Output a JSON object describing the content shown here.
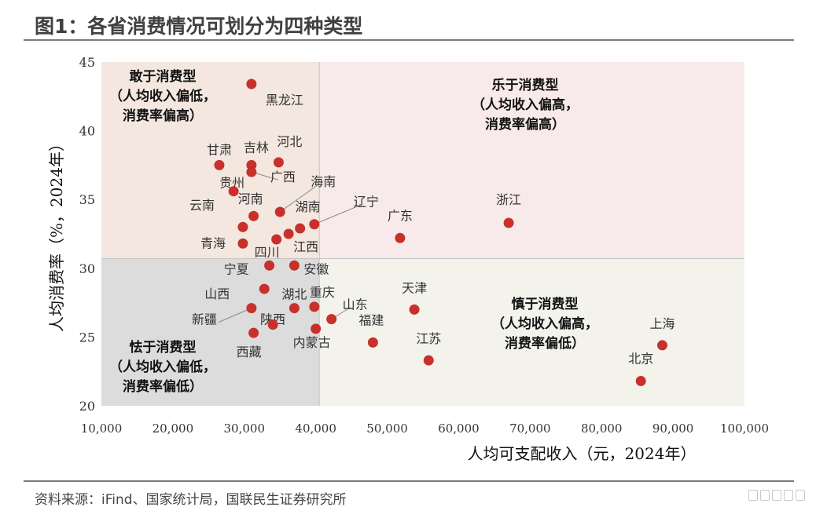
{
  "header": {
    "title": "图1：各省消费情况可划分为四种类型"
  },
  "footer": {
    "source": "资料来源：iFind、国家统计局，国联民生证券研究所"
  },
  "quadrants": {
    "top_left": {
      "lines": [
        "敢于消费型",
        "（人均收入偏低，",
        "消费率偏高）"
      ],
      "color": "#f3e7df"
    },
    "top_right": {
      "lines": [
        "乐于消费型",
        "（人均收入偏高，",
        "消费率偏高）"
      ],
      "color": "#f8eaea"
    },
    "bottom_left": {
      "lines": [
        "怯于消费型",
        "（人均收入偏低，",
        "消费率偏低）"
      ],
      "color": "#dcdcdc"
    },
    "bottom_right": {
      "lines": [
        "慎于消费型",
        "（人均收入偏高，",
        "消费率偏低）"
      ],
      "color": "#f3f3ec"
    }
  },
  "chart_data": {
    "type": "scatter",
    "xlabel": "人均可支配收入（元，2024年）",
    "ylabel": "人均消费率（%，2024年）",
    "xlim": [
      10000,
      100000
    ],
    "ylim": [
      20,
      45
    ],
    "x_ticks": [
      "10,000",
      "20,000",
      "30,000",
      "40,000",
      "50,000",
      "60,000",
      "70,000",
      "80,000",
      "90,000",
      "100,000"
    ],
    "y_ticks": [
      "20",
      "25",
      "30",
      "35",
      "40",
      "45"
    ],
    "dividers": {
      "x": 40500,
      "y": 30.7
    },
    "point_color": "#c8302c",
    "points": [
      {
        "name": "黑龙江",
        "x": 31000,
        "y": 43.4
      },
      {
        "name": "甘肃",
        "x": 26500,
        "y": 37.5
      },
      {
        "name": "吉林",
        "x": 31000,
        "y": 37.5
      },
      {
        "name": "河北",
        "x": 34800,
        "y": 37.7
      },
      {
        "name": "广西",
        "x": 31000,
        "y": 37.0
      },
      {
        "name": "贵州",
        "x": 28500,
        "y": 35.6
      },
      {
        "name": "海南",
        "x": 35000,
        "y": 34.1
      },
      {
        "name": "云南",
        "x": 29800,
        "y": 33.0
      },
      {
        "name": "河南",
        "x": 31300,
        "y": 33.8
      },
      {
        "name": "湖南",
        "x": 37800,
        "y": 32.9
      },
      {
        "name": "辽宁",
        "x": 39800,
        "y": 33.2
      },
      {
        "name": "广东",
        "x": 51800,
        "y": 32.2
      },
      {
        "name": "浙江",
        "x": 67000,
        "y": 33.3
      },
      {
        "name": "青海",
        "x": 29800,
        "y": 31.8
      },
      {
        "name": "四川",
        "x": 34500,
        "y": 32.1
      },
      {
        "name": "江西",
        "x": 36200,
        "y": 32.5
      },
      {
        "name": "宁夏",
        "x": 33500,
        "y": 30.2
      },
      {
        "name": "安徽",
        "x": 37000,
        "y": 30.2
      },
      {
        "name": "山西",
        "x": 32800,
        "y": 28.5
      },
      {
        "name": "湖北",
        "x": 37000,
        "y": 27.1
      },
      {
        "name": "重庆",
        "x": 39800,
        "y": 27.2
      },
      {
        "name": "山东",
        "x": 42200,
        "y": 26.3
      },
      {
        "name": "天津",
        "x": 53800,
        "y": 27.0
      },
      {
        "name": "新疆",
        "x": 31000,
        "y": 27.1
      },
      {
        "name": "陕西",
        "x": 34000,
        "y": 25.9
      },
      {
        "name": "西藏",
        "x": 31300,
        "y": 25.3
      },
      {
        "name": "内蒙古",
        "x": 40000,
        "y": 25.6
      },
      {
        "name": "福建",
        "x": 48000,
        "y": 24.6
      },
      {
        "name": "江苏",
        "x": 55800,
        "y": 23.3
      },
      {
        "name": "上海",
        "x": 88500,
        "y": 24.4
      },
      {
        "name": "北京",
        "x": 85500,
        "y": 21.8
      }
    ]
  }
}
